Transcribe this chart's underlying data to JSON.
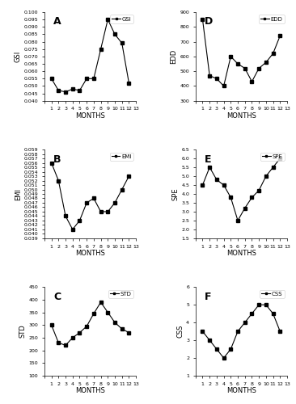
{
  "months": [
    1,
    2,
    3,
    4,
    5,
    6,
    7,
    8,
    9,
    10,
    11,
    12
  ],
  "GSI": [
    0.055,
    0.047,
    0.046,
    0.048,
    0.047,
    0.055,
    0.055,
    0.075,
    0.095,
    0.085,
    0.079,
    0.052
  ],
  "GSI_ylim": [
    0.04,
    0.1
  ],
  "GSI_yticks": [
    0.04,
    0.045,
    0.05,
    0.055,
    0.06,
    0.065,
    0.07,
    0.075,
    0.08,
    0.085,
    0.09,
    0.095,
    0.1
  ],
  "GSI_yticklabels": [
    "0.040",
    "0.045",
    "0.050",
    "0.055",
    "0.060",
    "0.065",
    "0.070",
    "0.075",
    "0.080",
    "0.085",
    "0.090",
    "0.095",
    "0.100"
  ],
  "EMI": [
    0.056,
    0.052,
    0.044,
    0.041,
    0.043,
    0.047,
    0.048,
    0.045,
    0.045,
    0.047,
    0.05,
    0.053
  ],
  "EMI_ylim": [
    0.039,
    0.059
  ],
  "EMI_yticks": [
    0.039,
    0.04,
    0.041,
    0.042,
    0.043,
    0.044,
    0.045,
    0.046,
    0.047,
    0.048,
    0.049,
    0.05,
    0.051,
    0.052,
    0.053,
    0.054,
    0.055,
    0.056,
    0.057,
    0.058,
    0.059
  ],
  "EMI_yticklabels": [
    "0.039",
    "0.040",
    "0.041",
    "0.042",
    "0.043",
    "0.044",
    "0.045",
    "0.046",
    "0.047",
    "0.048",
    "0.049",
    "0.050",
    "0.051",
    "0.052",
    "0.053",
    "0.054",
    "0.055",
    "0.056",
    "0.057",
    "0.058",
    "0.059"
  ],
  "STD": [
    300,
    230,
    220,
    250,
    270,
    295,
    345,
    390,
    350,
    310,
    285,
    270
  ],
  "STD_ylim": [
    100,
    450
  ],
  "STD_yticks": [
    100,
    150,
    200,
    250,
    300,
    350,
    400,
    450
  ],
  "STD_yticklabels": [
    "100",
    "150",
    "200",
    "250",
    "300",
    "350",
    "400",
    "450"
  ],
  "EDD": [
    850,
    470,
    450,
    400,
    600,
    550,
    520,
    430,
    520,
    560,
    620,
    740
  ],
  "EDD_ylim": [
    300,
    900
  ],
  "EDD_yticks": [
    300,
    400,
    500,
    600,
    700,
    800,
    900
  ],
  "EDD_yticklabels": [
    "300",
    "400",
    "500",
    "600",
    "700",
    "800",
    "900"
  ],
  "SPE": [
    4.5,
    5.5,
    4.8,
    4.5,
    3.8,
    2.5,
    3.2,
    3.8,
    4.2,
    5.0,
    5.5,
    6.0
  ],
  "SPE_ylim": [
    1.5,
    6.5
  ],
  "SPE_yticks": [
    1.5,
    2.0,
    2.5,
    3.0,
    3.5,
    4.0,
    4.5,
    5.0,
    5.5,
    6.0,
    6.5
  ],
  "SPE_yticklabels": [
    "1.5",
    "2.0",
    "2.5",
    "3.0",
    "3.5",
    "4.0",
    "4.5",
    "5.0",
    "5.5",
    "6.0",
    "6.5"
  ],
  "CSS": [
    3.5,
    3.0,
    2.5,
    2.0,
    2.5,
    3.5,
    4.0,
    4.5,
    5.0,
    5.0,
    4.5,
    3.5
  ],
  "CSS_ylim": [
    1.0,
    6.0
  ],
  "CSS_yticks": [
    1,
    2,
    3,
    4,
    5,
    6
  ],
  "CSS_yticklabels": [
    "1",
    "2",
    "3",
    "4",
    "5",
    "6"
  ],
  "line_color": "#000000",
  "marker": "s",
  "markersize": 2.5,
  "linewidth": 0.8,
  "xlabel": "MONTHS",
  "ylabel_fontsize": 6,
  "xlabel_fontsize": 6,
  "tick_fontsize": 4.5,
  "legend_fontsize": 5,
  "letter_fontsize": 9
}
